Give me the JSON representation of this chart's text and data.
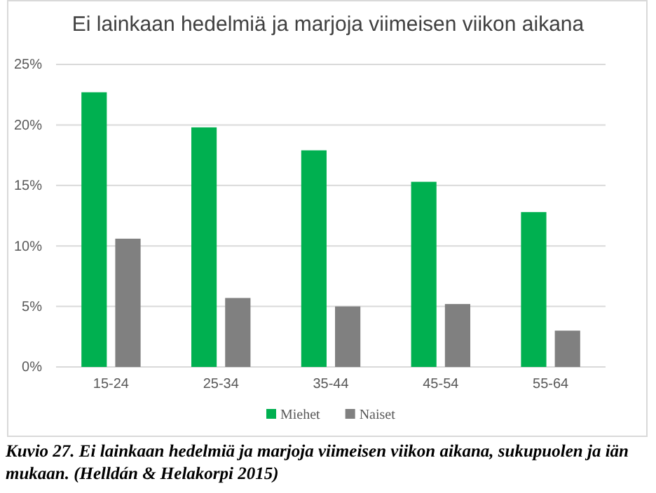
{
  "chart_data": {
    "type": "bar",
    "title": "Ei lainkaan hedelmiä ja marjoja viimeisen viikon aikana",
    "categories": [
      "15-24",
      "25-34",
      "35-44",
      "45-54",
      "55-64"
    ],
    "series": [
      {
        "name": "Miehet",
        "color": "#00b050",
        "values": [
          22.7,
          19.8,
          17.9,
          15.3,
          12.8
        ]
      },
      {
        "name": "Naiset",
        "color": "#808080",
        "values": [
          10.6,
          5.7,
          5.0,
          5.2,
          3.0
        ]
      }
    ],
    "ylim": [
      0,
      25
    ],
    "yticks": [
      {
        "value": 0,
        "label": "0%"
      },
      {
        "value": 5,
        "label": "5%"
      },
      {
        "value": 10,
        "label": "10%"
      },
      {
        "value": 15,
        "label": "15%"
      },
      {
        "value": 20,
        "label": "20%"
      },
      {
        "value": 25,
        "label": "25%"
      }
    ],
    "grid": "y",
    "legend": "bottom",
    "annotations": [
      "Kuvio 27. Ei lainkaan hedelmiä ja marjoja viimeisen viikon aikana, sukupuolen ja iän mukaan. (Helldán & Helakorpi 2015)"
    ]
  }
}
